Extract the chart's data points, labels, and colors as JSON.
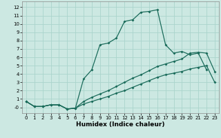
{
  "xlabel": "Humidex (Indice chaleur)",
  "background_color": "#cce8e2",
  "grid_color": "#aad4cc",
  "line_color": "#1a6b5a",
  "xlim": [
    -0.5,
    23.5
  ],
  "ylim": [
    -0.7,
    12.7
  ],
  "xticks": [
    0,
    1,
    2,
    3,
    4,
    5,
    6,
    7,
    8,
    9,
    10,
    11,
    12,
    13,
    14,
    15,
    16,
    17,
    18,
    19,
    20,
    21,
    22,
    23
  ],
  "yticks": [
    0,
    1,
    2,
    3,
    4,
    5,
    6,
    7,
    8,
    9,
    10,
    11,
    12
  ],
  "ytick_labels": [
    "-0",
    "1",
    "2",
    "3",
    "4",
    "5",
    "6",
    "7",
    "8",
    "9",
    "10",
    "11",
    "12"
  ],
  "line1_x": [
    0,
    1,
    2,
    3,
    4,
    5,
    6,
    7,
    8,
    9,
    10,
    11,
    12,
    13,
    14,
    15,
    16,
    17,
    18,
    19,
    20,
    21,
    22
  ],
  "line1_y": [
    0.7,
    0.1,
    0.1,
    0.3,
    0.3,
    -0.2,
    -0.1,
    3.4,
    4.5,
    7.5,
    7.7,
    8.3,
    10.3,
    10.5,
    11.4,
    11.5,
    11.7,
    7.5,
    6.5,
    6.7,
    6.3,
    6.5,
    4.5
  ],
  "line2_x": [
    0,
    1,
    2,
    3,
    4,
    5,
    6,
    7,
    8,
    9,
    10,
    11,
    12,
    13,
    14,
    15,
    16,
    17,
    18,
    19,
    20,
    21,
    22,
    23
  ],
  "line2_y": [
    0.7,
    0.1,
    0.1,
    0.3,
    0.3,
    -0.2,
    -0.1,
    0.7,
    1.2,
    1.6,
    2.0,
    2.5,
    3.0,
    3.5,
    3.9,
    4.4,
    4.9,
    5.2,
    5.5,
    5.8,
    6.5,
    6.6,
    6.5,
    4.3
  ],
  "line3_x": [
    0,
    1,
    2,
    3,
    4,
    5,
    6,
    7,
    8,
    9,
    10,
    11,
    12,
    13,
    14,
    15,
    16,
    17,
    18,
    19,
    20,
    21,
    22,
    23
  ],
  "line3_y": [
    0.7,
    0.1,
    0.1,
    0.3,
    0.3,
    -0.2,
    -0.1,
    0.4,
    0.7,
    1.0,
    1.3,
    1.7,
    2.0,
    2.4,
    2.8,
    3.2,
    3.6,
    3.9,
    4.1,
    4.3,
    4.6,
    4.8,
    5.0,
    3.0
  ]
}
